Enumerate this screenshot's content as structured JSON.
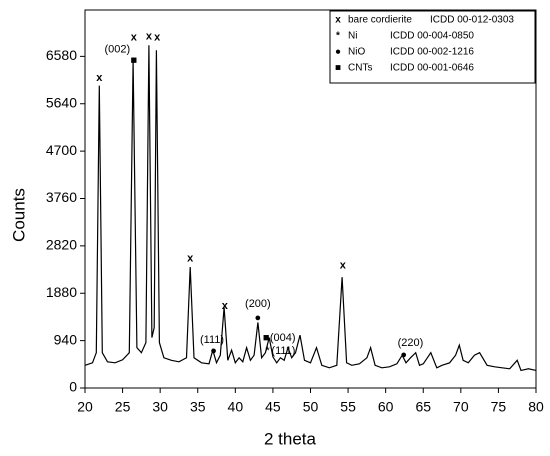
{
  "chart_data": {
    "type": "line",
    "xlabel": "2 theta",
    "ylabel": "Counts",
    "xlim": [
      20,
      80
    ],
    "xticks": [
      20,
      25,
      30,
      35,
      40,
      45,
      50,
      55,
      60,
      65,
      70,
      75,
      80
    ],
    "ylim": [
      0,
      7500
    ],
    "yticks": [
      0,
      940,
      1880,
      2820,
      3760,
      4700,
      5640,
      6580
    ],
    "x": [
      20,
      21,
      21.5,
      21.9,
      22.3,
      23,
      24,
      25,
      25.9,
      26.4,
      26.9,
      27.5,
      28.1,
      28.5,
      28.9,
      29.2,
      29.5,
      29.9,
      30.5,
      31.5,
      32.5,
      33.5,
      34,
      34.5,
      35.5,
      36.5,
      37,
      37.5,
      38,
      38.5,
      39,
      39.5,
      40,
      40.5,
      41,
      41.5,
      42,
      42.5,
      43,
      43.5,
      44,
      44.5,
      45,
      45.5,
      46,
      46.5,
      47,
      47.5,
      48,
      48.6,
      49.2,
      50,
      50.8,
      51.5,
      52.5,
      53.5,
      54.2,
      54.8,
      55.5,
      56.5,
      57.5,
      58,
      58.6,
      59.5,
      60.5,
      61.5,
      62.2,
      62.7,
      63.3,
      64,
      64.5,
      65,
      66,
      66.8,
      67.5,
      68.5,
      69.3,
      69.8,
      70.3,
      71,
      71.8,
      72.5,
      73.5,
      74.5,
      75.5,
      76.5,
      77.5,
      78,
      79,
      80
    ],
    "series": [
      {
        "color": "#000000",
        "values": [
          450,
          500,
          700,
          6000,
          700,
          520,
          500,
          560,
          700,
          6500,
          800,
          700,
          900,
          6800,
          1000,
          1200,
          6700,
          900,
          600,
          550,
          520,
          600,
          2400,
          600,
          500,
          480,
          750,
          500,
          650,
          1600,
          550,
          750,
          500,
          600,
          520,
          800,
          550,
          650,
          1300,
          600,
          700,
          1000,
          620,
          500,
          600,
          550,
          800,
          600,
          700,
          1050,
          550,
          500,
          800,
          450,
          400,
          450,
          2200,
          500,
          450,
          480,
          600,
          800,
          450,
          400,
          420,
          480,
          650,
          500,
          600,
          700,
          450,
          480,
          700,
          400,
          450,
          500,
          650,
          850,
          550,
          500,
          650,
          700,
          450,
          420,
          400,
          380,
          550,
          350,
          380,
          350
        ]
      }
    ],
    "annotations": [
      {
        "text": "x",
        "x": 21.9,
        "y": 6150
      },
      {
        "text": "x",
        "x": 26.5,
        "y": 6955
      },
      {
        "text": "(002)",
        "x": 24.3,
        "y": 6717
      },
      {
        "text": "■",
        "x": 26.5,
        "y": 6500
      },
      {
        "text": "x",
        "x": 28.5,
        "y": 6975
      },
      {
        "text": "x",
        "x": 29.6,
        "y": 6955
      },
      {
        "text": "x",
        "x": 34,
        "y": 2563
      },
      {
        "text": "x",
        "x": 38.6,
        "y": 1630
      },
      {
        "text": "(111)",
        "x": 36.9,
        "y": 954
      },
      {
        "text": "●",
        "x": 37.1,
        "y": 735
      },
      {
        "text": "(200)",
        "x": 43,
        "y": 1669
      },
      {
        "text": "●",
        "x": 43,
        "y": 1390
      },
      {
        "text": "■",
        "x": 44.1,
        "y": 993
      },
      {
        "text": "(004)",
        "x": 46.3,
        "y": 993
      },
      {
        "text": "*",
        "x": 44.3,
        "y": 735
      },
      {
        "text": "(111)",
        "x": 46.4,
        "y": 735
      },
      {
        "text": "x",
        "x": 54.3,
        "y": 2424
      },
      {
        "text": "(220)",
        "x": 63.3,
        "y": 894
      },
      {
        "text": "●",
        "x": 62.4,
        "y": 656
      }
    ],
    "legend": [
      {
        "symbol": "x",
        "name": "bare cordierite",
        "ref": "ICDD 00-012-0303"
      },
      {
        "symbol": "*",
        "name": "Ni",
        "ref": "ICDD 00-004-0850"
      },
      {
        "symbol": "●",
        "name": "NiO",
        "ref": "ICDD 00-002-1216"
      },
      {
        "symbol": "■",
        "name": "CNTs",
        "ref": "ICDD 00-001-0646"
      }
    ],
    "legend_position": "upper right"
  }
}
